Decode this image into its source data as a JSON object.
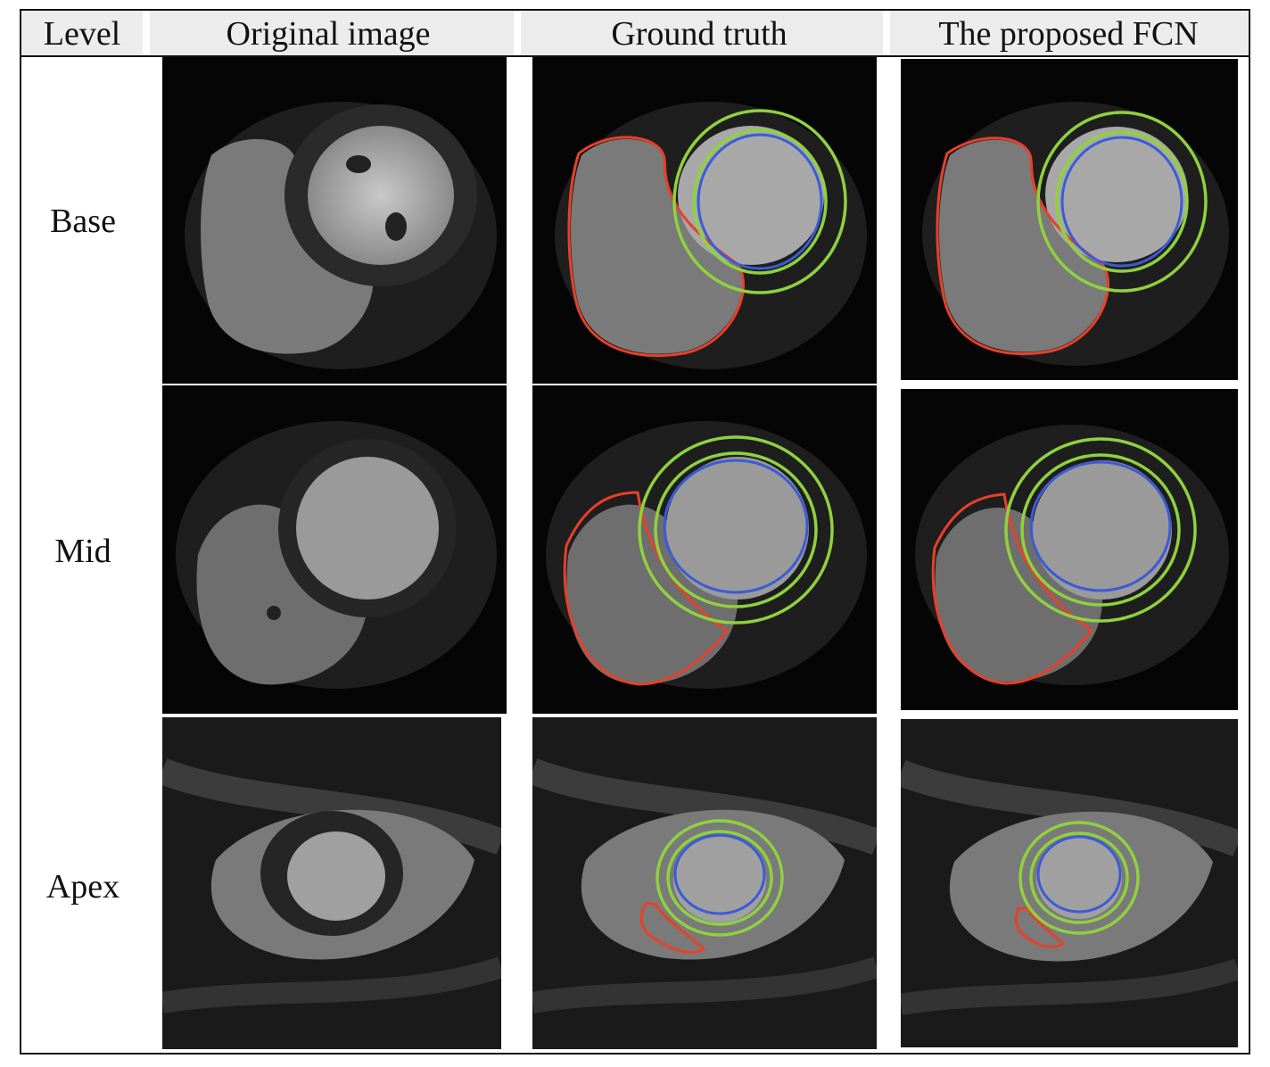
{
  "header": {
    "level": "Level",
    "original": "Original image",
    "ground_truth": "Ground truth",
    "proposed": "The proposed FCN"
  },
  "rows": {
    "base": "Base",
    "mid": "Mid",
    "apex": "Apex"
  },
  "colors": {
    "rv_contour": "#e8402a",
    "epicardium_contour": "#8fd13f",
    "endocardium_contour": "#3b5bd6"
  }
}
